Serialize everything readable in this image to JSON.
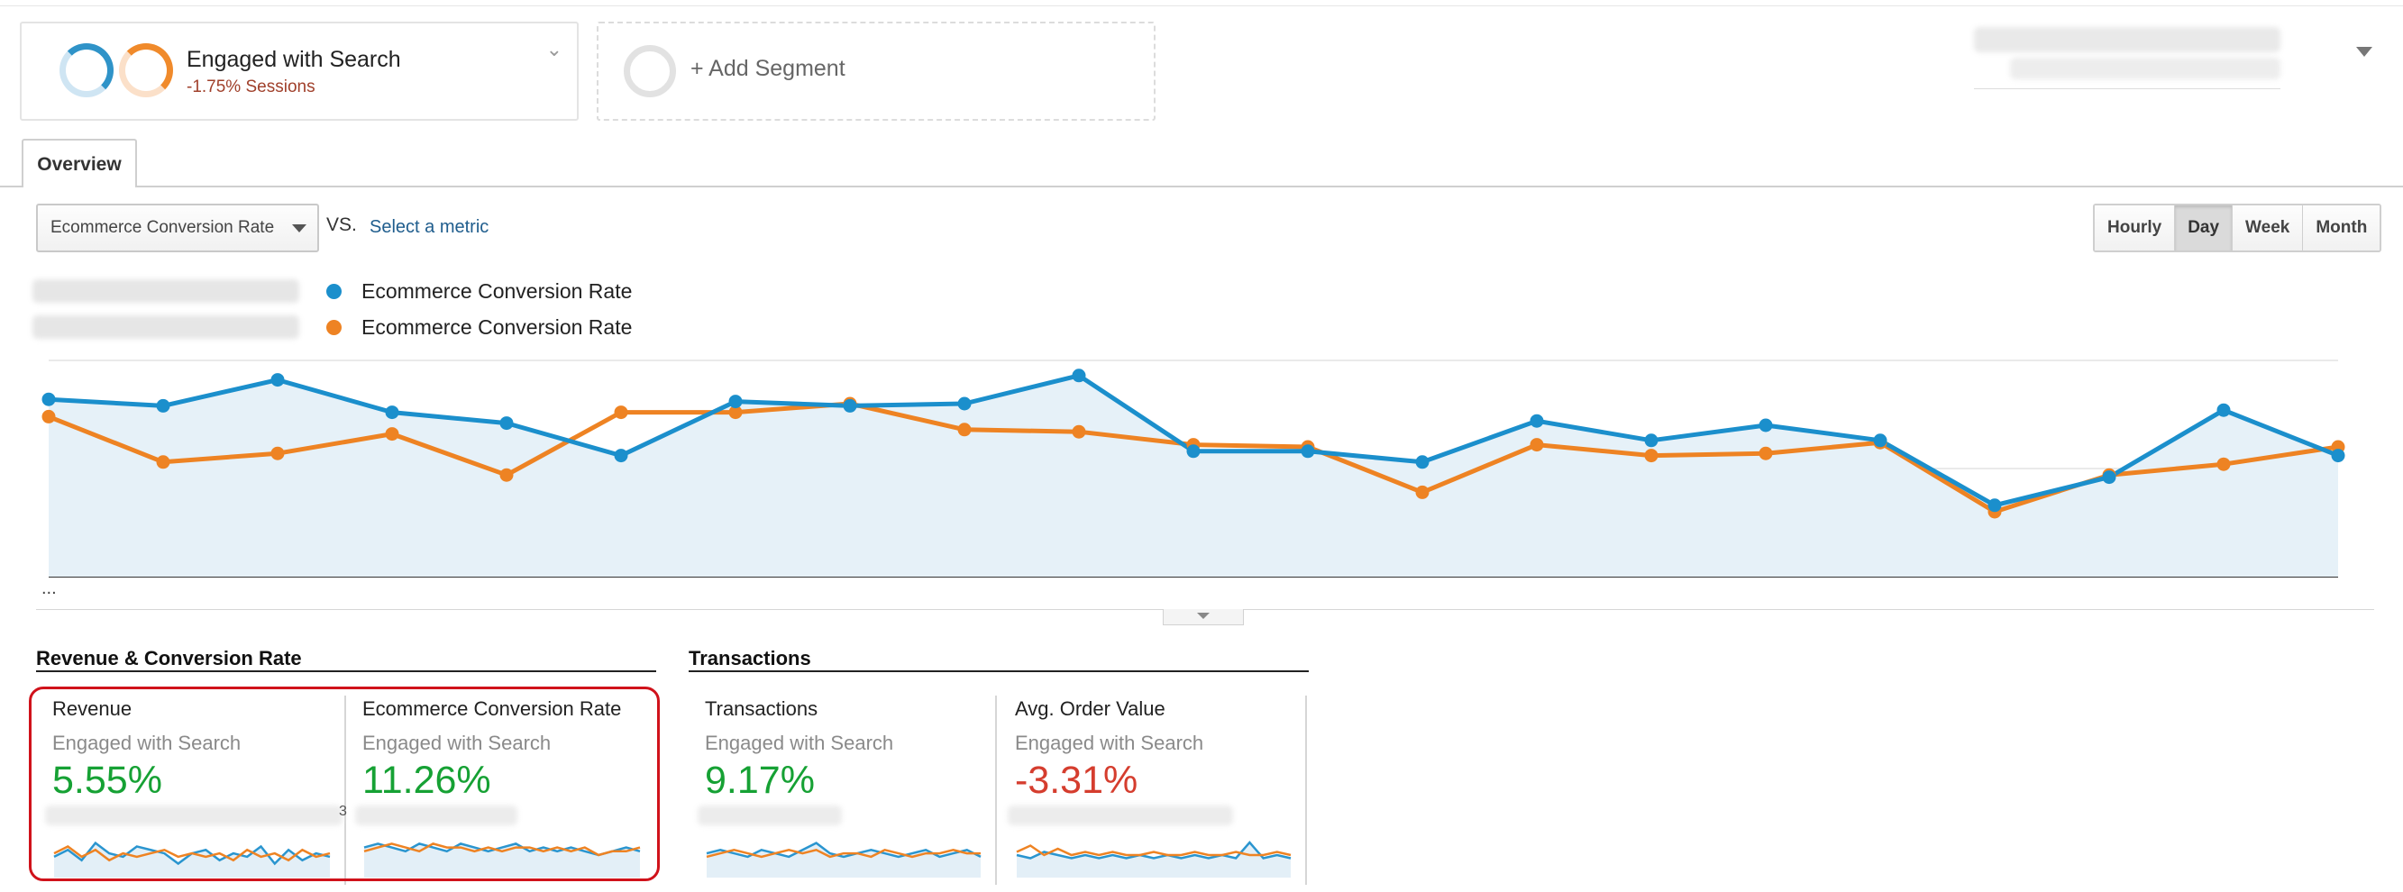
{
  "segments": {
    "active": {
      "title": "Engaged with Search",
      "subtitle": "-1.75% Sessions"
    },
    "add_label": "+ Add Segment"
  },
  "tabs": {
    "overview": "Overview"
  },
  "explorer": {
    "metric_selected": "Ecommerce Conversion Rate",
    "vs_label": "VS.",
    "select_metric_link": "Select a metric",
    "granularity": [
      {
        "label": "Hourly",
        "active": false
      },
      {
        "label": "Day",
        "active": true
      },
      {
        "label": "Week",
        "active": false
      },
      {
        "label": "Month",
        "active": false
      }
    ]
  },
  "legend": [
    {
      "label": "Ecommerce Conversion Rate",
      "color": "#1b8fcc"
    },
    {
      "label": "Ecommerce Conversion Rate",
      "color": "#ee8323"
    }
  ],
  "chart_data": {
    "type": "line",
    "series": [
      {
        "color": "#1b8fcc",
        "values": [
          82,
          79,
          91,
          76,
          71,
          56,
          81,
          79,
          80,
          93,
          58,
          58,
          53,
          72,
          63,
          70,
          63,
          33,
          46,
          77,
          56
        ]
      },
      {
        "color": "#ee8323",
        "values": [
          74,
          53,
          57,
          66,
          47,
          76,
          76,
          80,
          68,
          67,
          61,
          60,
          39,
          61,
          56,
          57,
          62,
          30,
          47,
          52,
          60
        ]
      }
    ],
    "ylim": [
      0,
      100
    ],
    "grid": true,
    "x_tick_labels_visible": false,
    "ellipsis_label": "..."
  },
  "scorecard_groups": [
    {
      "title": "Revenue & Conversion Rate",
      "cards": [
        {
          "title": "Revenue",
          "segment": "Engaged with Search",
          "value": "5.55%",
          "trend": "positive",
          "spark": {
            "blue": [
              5,
              7,
              4,
              9,
              6,
              5,
              8,
              7,
              6,
              3,
              6,
              7,
              4,
              6,
              5,
              8,
              3,
              7,
              4,
              6,
              5
            ],
            "orange": [
              6,
              8,
              5,
              7,
              4,
              6,
              5,
              6,
              7,
              5,
              6,
              5,
              6,
              4,
              7,
              5,
              6,
              4,
              7,
              5,
              6
            ]
          }
        },
        {
          "title": "Ecommerce Conversion Rate",
          "segment": "Engaged with Search",
          "value": "11.26%",
          "trend": "positive",
          "spark": {
            "blue": [
              7,
              8,
              7,
              6,
              8,
              7,
              6,
              8,
              7,
              6,
              7,
              8,
              6,
              7,
              6,
              7,
              6,
              5,
              6,
              7,
              6
            ],
            "orange": [
              6,
              7,
              8,
              7,
              6,
              8,
              7,
              7,
              6,
              7,
              6,
              7,
              7,
              6,
              7,
              6,
              7,
              5,
              6,
              6,
              7
            ]
          }
        }
      ]
    },
    {
      "title": "Transactions",
      "cards": [
        {
          "title": "Transactions",
          "segment": "Engaged with Search",
          "value": "9.17%",
          "trend": "positive",
          "spark": {
            "blue": [
              6,
              7,
              6,
              5,
              7,
              6,
              5,
              7,
              9,
              6,
              5,
              6,
              7,
              6,
              5,
              6,
              7,
              5,
              6,
              7,
              5
            ],
            "orange": [
              5,
              6,
              7,
              6,
              5,
              6,
              7,
              6,
              7,
              5,
              6,
              6,
              5,
              7,
              6,
              5,
              6,
              6,
              7,
              6,
              6
            ]
          }
        },
        {
          "title": "Avg. Order Value",
          "segment": "Engaged with Search",
          "value": "-3.31%",
          "trend": "negative",
          "spark": {
            "blue": [
              6,
              5,
              7,
              6,
              5,
              6,
              5,
              6,
              5,
              6,
              5,
              6,
              5,
              6,
              5,
              6,
              5,
              10,
              5,
              6,
              5
            ],
            "orange": [
              7,
              9,
              6,
              8,
              6,
              7,
              6,
              7,
              6,
              6,
              7,
              6,
              6,
              7,
              6,
              6,
              7,
              6,
              6,
              7,
              6
            ]
          }
        }
      ]
    }
  ]
}
